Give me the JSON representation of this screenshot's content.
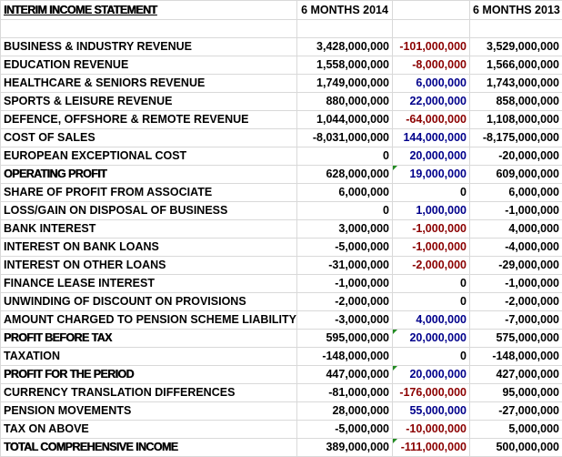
{
  "title": "INTERIM INCOME STATEMENT",
  "headers": {
    "period_2014": "6 MONTHS 2014",
    "period_2013": "6 MONTHS 2013"
  },
  "rows": [
    {
      "label": "BUSINESS & INDUSTRY REVENUE",
      "v2014": "3,428,000,000",
      "variance": "-101,000,000",
      "v2013": "3,529,000,000",
      "emphasis": false,
      "comment_marker": false
    },
    {
      "label": "EDUCATION REVENUE",
      "v2014": "1,558,000,000",
      "variance": "-8,000,000",
      "v2013": "1,566,000,000",
      "emphasis": false,
      "comment_marker": false
    },
    {
      "label": "HEALTHCARE & SENIORS REVENUE",
      "v2014": "1,749,000,000",
      "variance": "6,000,000",
      "v2013": "1,743,000,000",
      "emphasis": false,
      "comment_marker": false
    },
    {
      "label": "SPORTS & LEISURE REVENUE",
      "v2014": "880,000,000",
      "variance": "22,000,000",
      "v2013": "858,000,000",
      "emphasis": false,
      "comment_marker": false
    },
    {
      "label": "DEFENCE, OFFSHORE & REMOTE REVENUE",
      "v2014": "1,044,000,000",
      "variance": "-64,000,000",
      "v2013": "1,108,000,000",
      "emphasis": false,
      "comment_marker": false
    },
    {
      "label": "COST OF SALES",
      "v2014": "-8,031,000,000",
      "variance": "144,000,000",
      "v2013": "-8,175,000,000",
      "emphasis": false,
      "comment_marker": false
    },
    {
      "label": "EUROPEAN EXCEPTIONAL COST",
      "v2014": "0",
      "variance": "20,000,000",
      "v2013": "-20,000,000",
      "emphasis": false,
      "comment_marker": false
    },
    {
      "label": "OPERATING PROFIT",
      "v2014": "628,000,000",
      "variance": "19,000,000",
      "v2013": "609,000,000",
      "emphasis": true,
      "comment_marker": true
    },
    {
      "label": "SHARE OF PROFIT FROM ASSOCIATE",
      "v2014": "6,000,000",
      "variance": "0",
      "v2013": "6,000,000",
      "emphasis": false,
      "comment_marker": false
    },
    {
      "label": "LOSS/GAIN ON DISPOSAL OF BUSINESS",
      "v2014": "0",
      "variance": "1,000,000",
      "v2013": "-1,000,000",
      "emphasis": false,
      "comment_marker": false
    },
    {
      "label": "BANK INTEREST",
      "v2014": "3,000,000",
      "variance": "-1,000,000",
      "v2013": "4,000,000",
      "emphasis": false,
      "comment_marker": false
    },
    {
      "label": "INTEREST ON BANK LOANS",
      "v2014": "-5,000,000",
      "variance": "-1,000,000",
      "v2013": "-4,000,000",
      "emphasis": false,
      "comment_marker": false
    },
    {
      "label": "INTEREST ON OTHER LOANS",
      "v2014": "-31,000,000",
      "variance": "-2,000,000",
      "v2013": "-29,000,000",
      "emphasis": false,
      "comment_marker": false
    },
    {
      "label": "FINANCE LEASE INTEREST",
      "v2014": "-1,000,000",
      "variance": "0",
      "v2013": "-1,000,000",
      "emphasis": false,
      "comment_marker": false
    },
    {
      "label": "UNWINDING OF DISCOUNT ON PROVISIONS",
      "v2014": "-2,000,000",
      "variance": "0",
      "v2013": "-2,000,000",
      "emphasis": false,
      "comment_marker": false
    },
    {
      "label": "AMOUNT CHARGED TO PENSION SCHEME LIABILITY",
      "v2014": "-3,000,000",
      "variance": "4,000,000",
      "v2013": "-7,000,000",
      "emphasis": false,
      "comment_marker": false
    },
    {
      "label": "PROFIT BEFORE TAX",
      "v2014": "595,000,000",
      "variance": "20,000,000",
      "v2013": "575,000,000",
      "emphasis": true,
      "comment_marker": true
    },
    {
      "label": "TAXATION",
      "v2014": "-148,000,000",
      "variance": "0",
      "v2013": "-148,000,000",
      "emphasis": false,
      "comment_marker": false
    },
    {
      "label": "PROFIT FOR THE PERIOD",
      "v2014": "447,000,000",
      "variance": "20,000,000",
      "v2013": "427,000,000",
      "emphasis": true,
      "comment_marker": true
    },
    {
      "label": "CURRENCY TRANSLATION DIFFERENCES",
      "v2014": "-81,000,000",
      "variance": "-176,000,000",
      "v2013": "95,000,000",
      "emphasis": false,
      "comment_marker": false
    },
    {
      "label": "PENSION MOVEMENTS",
      "v2014": "28,000,000",
      "variance": "55,000,000",
      "v2013": "-27,000,000",
      "emphasis": false,
      "comment_marker": false
    },
    {
      "label": "TAX ON ABOVE",
      "v2014": "-5,000,000",
      "variance": "-10,000,000",
      "v2013": "5,000,000",
      "emphasis": false,
      "comment_marker": false
    },
    {
      "label": "TOTAL COMPREHENSIVE INCOME",
      "v2014": "389,000,000",
      "variance": "-111,000,000",
      "v2013": "500,000,000",
      "emphasis": true,
      "comment_marker": true
    }
  ],
  "colors": {
    "negative_variance": "#8b0000",
    "positive_variance": "#00008b",
    "comment_marker": "#228b22",
    "gridline": "#d9d9d9"
  }
}
